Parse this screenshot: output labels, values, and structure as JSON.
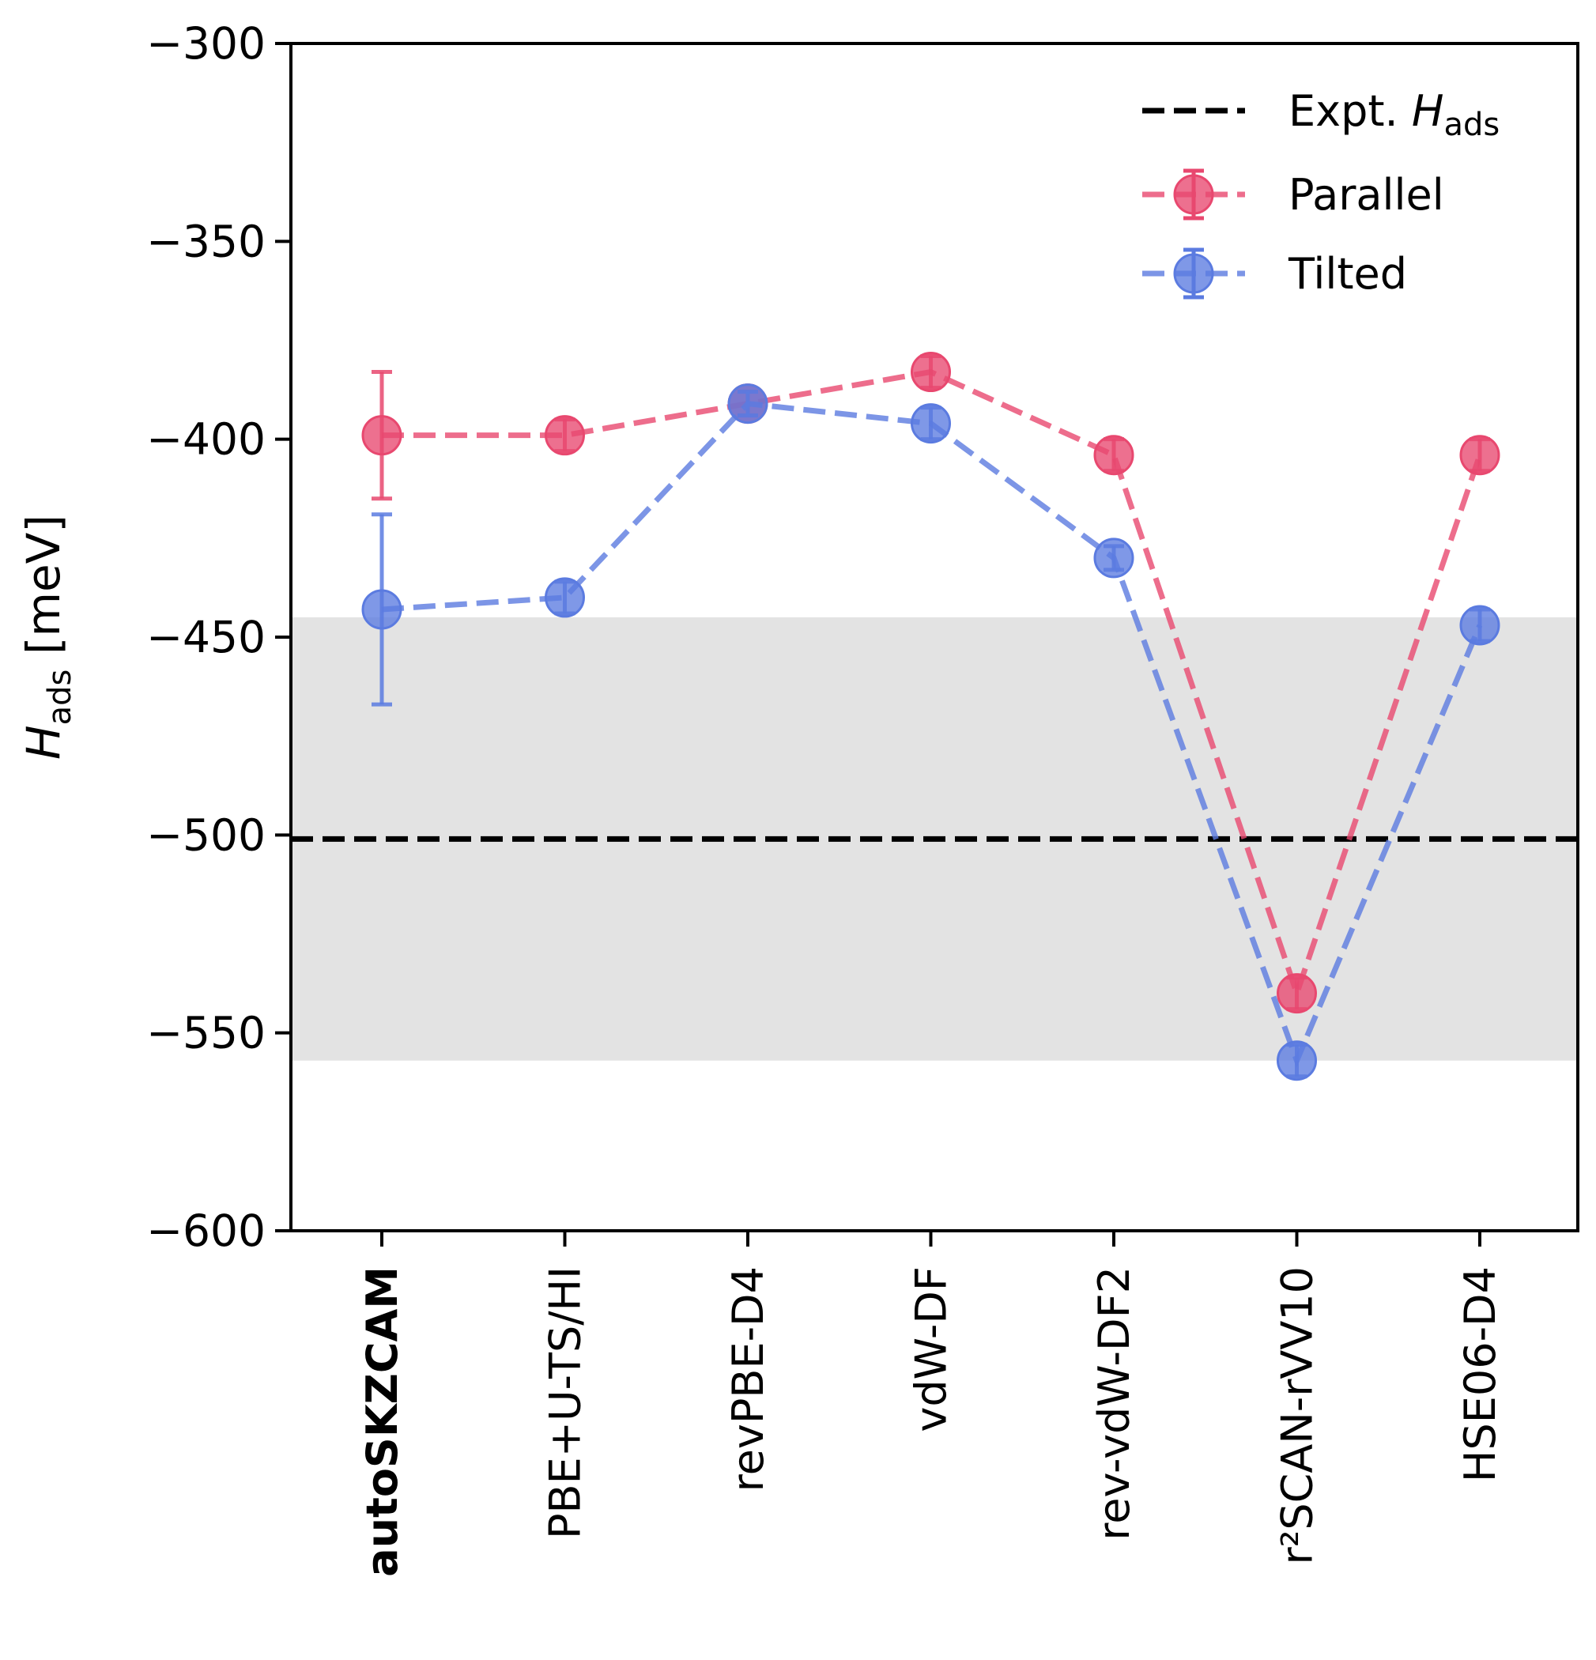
{
  "chart_data": {
    "type": "line",
    "ylabel": {
      "symbol": "H",
      "subscript": "ads",
      "unit": "[meV]"
    },
    "ylim": [
      -600,
      -300
    ],
    "yticks": [
      "−300",
      "−350",
      "−400",
      "−450",
      "−500",
      "−550",
      "−600"
    ],
    "yticks_values": [
      -300,
      -350,
      -400,
      -450,
      -500,
      -550,
      -600
    ],
    "categories": [
      "autoSKZCAM",
      "PBE+U-TS/HI",
      "revPBE-D4",
      "vdW-DF",
      "rev-vdW-DF2",
      "r²SCAN-rVV10",
      "HSE06-D4"
    ],
    "bold_category": "autoSKZCAM",
    "reference": {
      "name": "Expt. H_ads",
      "value": -501,
      "band": [
        -557,
        -445
      ],
      "band_color": "#e3e3e3",
      "color": "#000000"
    },
    "series": [
      {
        "name": "Parallel",
        "color": "#e8486f",
        "values": [
          -399,
          -399,
          -391,
          -383,
          -404,
          -540,
          -404
        ],
        "errors": [
          16,
          4,
          3,
          4,
          4,
          4,
          4
        ]
      },
      {
        "name": "Tilted",
        "color": "#5b7be0",
        "values": [
          -443,
          -440,
          -391,
          -396,
          -430,
          -557,
          -447
        ],
        "errors": [
          24,
          4,
          3,
          4,
          3,
          4,
          4
        ]
      }
    ],
    "legend": {
      "position": "top-right",
      "entries": [
        {
          "label_main": "Expt. ",
          "label_italic": "H",
          "label_sub": "ads",
          "style": "dashed-line"
        },
        {
          "label": "Parallel",
          "style": "marker-line"
        },
        {
          "label": "Tilted",
          "style": "marker-line"
        }
      ]
    },
    "grid": false
  }
}
